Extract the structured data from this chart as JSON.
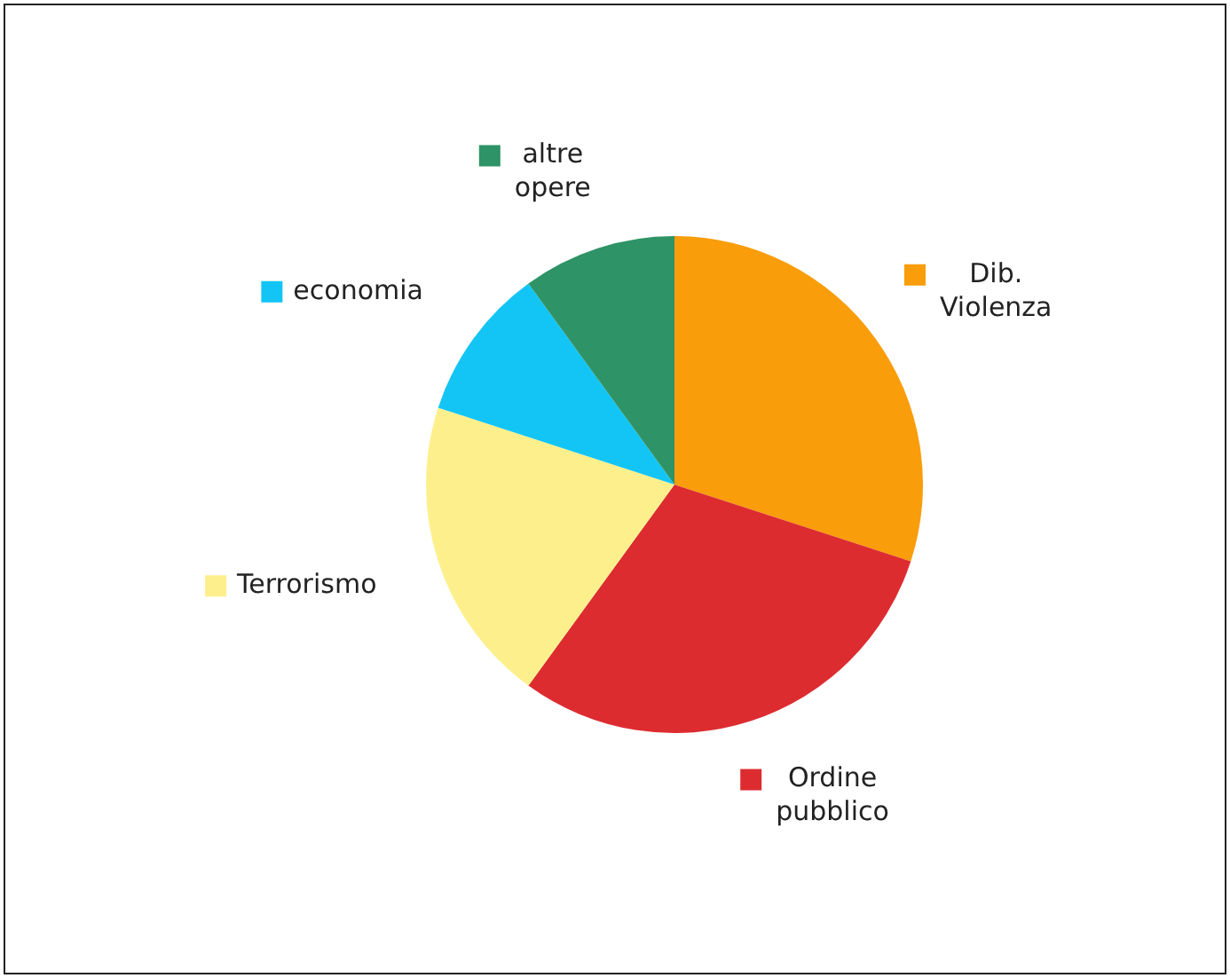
{
  "chart_data": {
    "type": "pie",
    "categories": [
      "Dib. Violenza",
      "Ordine pubblico",
      "Terrorismo",
      "economia",
      "altre opere"
    ],
    "values": [
      30,
      30,
      20,
      10,
      10
    ],
    "colors": [
      "#f99d0a",
      "#dd2c30",
      "#fdf08c",
      "#13c5f4",
      "#2e9366"
    ],
    "legend": "top left"
  }
}
